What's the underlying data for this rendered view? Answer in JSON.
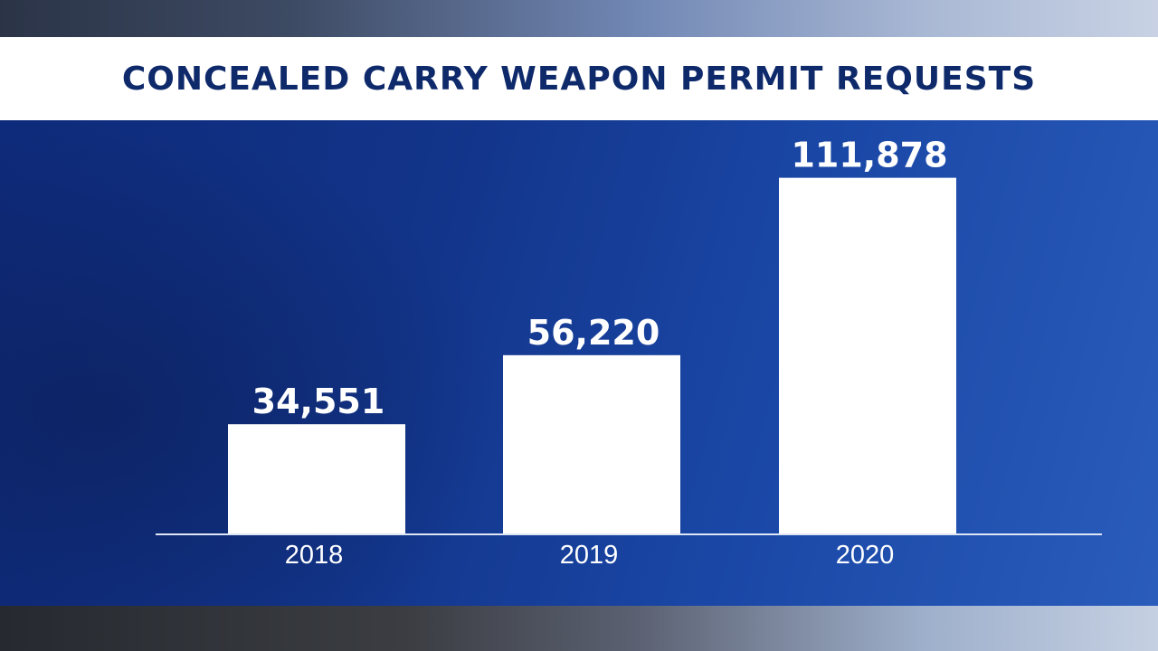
{
  "chart_data": {
    "type": "bar",
    "title": "CONCEALED CARRY WEAPON PERMIT REQUESTS",
    "categories": [
      "2018",
      "2019",
      "2020"
    ],
    "values": [
      34551,
      56220,
      111878
    ],
    "value_labels": [
      "34,551",
      "56,220",
      "111,878"
    ],
    "xlabel": "",
    "ylabel": "",
    "ylim": [
      0,
      120000
    ],
    "grid": false,
    "legend": "none",
    "colors": {
      "bar": "#ffffff",
      "title": "#0f2a6b",
      "panel": "#123489"
    }
  }
}
